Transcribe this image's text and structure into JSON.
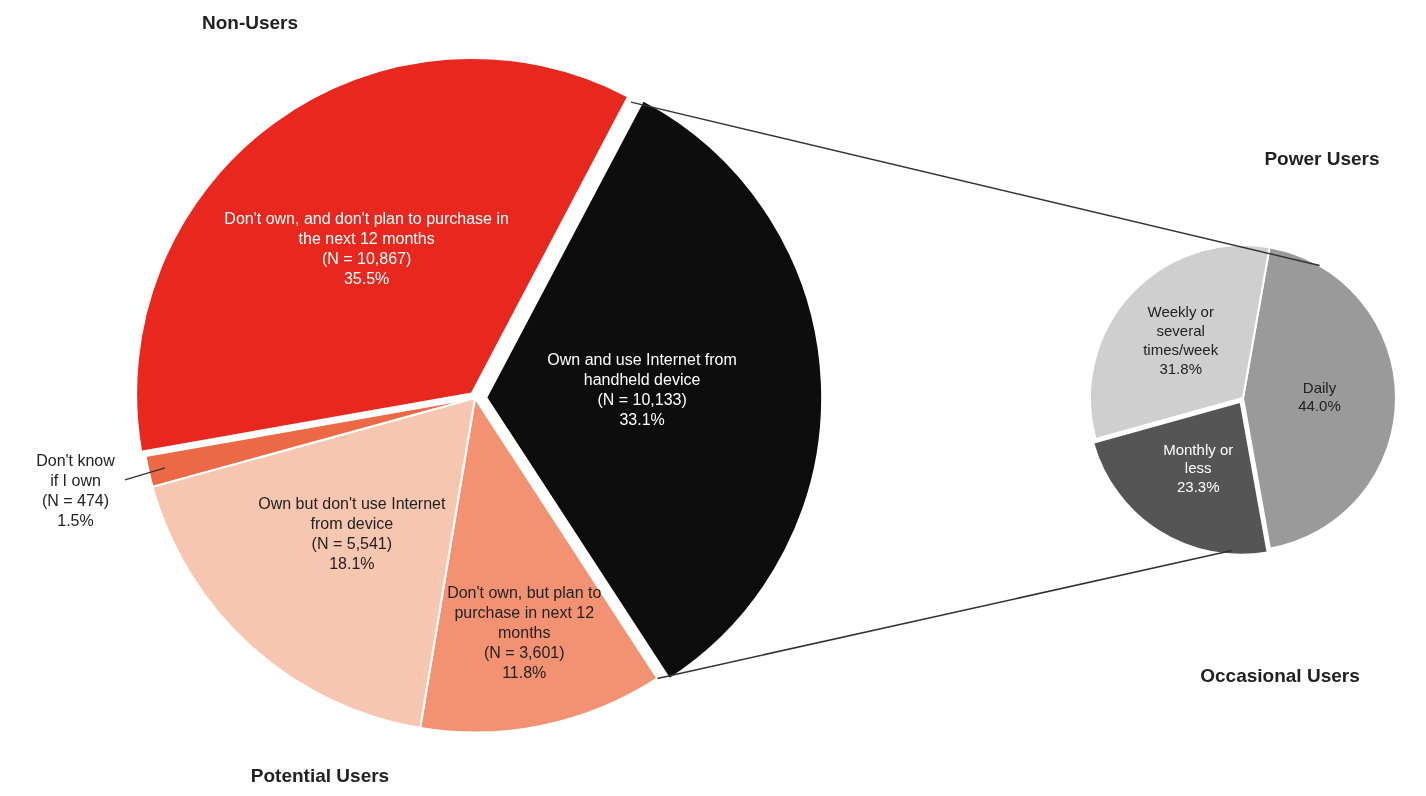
{
  "chart_data": [
    {
      "type": "pie",
      "categories": [
        "Don't own, and don't plan to purchase in the next 12 months",
        "Own and use Internet from handheld device",
        "Don't own, but plan to purchase in next 12 months",
        "Own but don't use Internet from device",
        "Don't know if I own"
      ],
      "values": [
        35.5,
        33.1,
        11.8,
        18.1,
        1.5
      ],
      "colors": [
        "#e8281e",
        "#0d0d0d",
        "#f39272",
        "#f7c6b0",
        "#eb6a45"
      ],
      "value_labels": [
        "(N = 10,867)\n35.5%",
        "(N = 10,133)\n33.1%",
        "(N = 3,601)\n11.8%",
        "(N = 5,541)\n18.1%",
        "(N = 474)\n1.5%"
      ],
      "annotations": [
        "Non-Users",
        "Potential Users"
      ]
    },
    {
      "type": "pie",
      "categories": [
        "Daily",
        "Monthly or less",
        "Weekly or several times/week"
      ],
      "values": [
        44.0,
        23.3,
        31.8
      ],
      "colors": [
        "#9a9a9a",
        "#555555",
        "#cfcfcf"
      ],
      "value_labels": [
        "44.0%",
        "23.3%",
        "31.8%"
      ],
      "annotations": [
        "Power Users",
        "Occasional Users"
      ]
    }
  ]
}
